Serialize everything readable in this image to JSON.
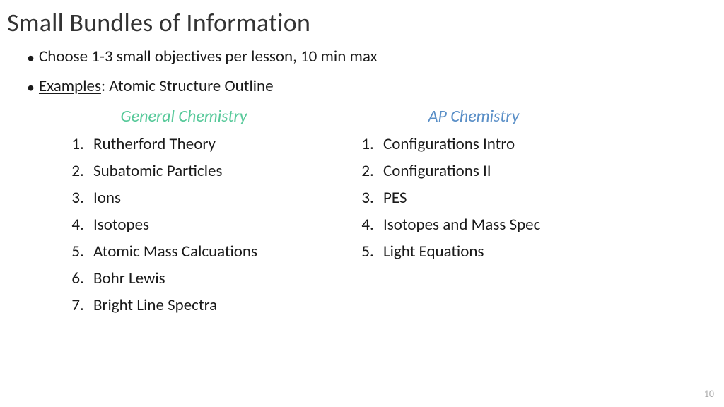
{
  "title": "Small Bundles of Information",
  "bullets": {
    "b1": "Choose 1-3 small objectives per lesson, 10 min max",
    "b2_label": "Examples",
    "b2_rest": ": Atomic Structure Outline"
  },
  "columns": {
    "left": {
      "header": "General Chemistry",
      "header_color": "#57c99a",
      "items": {
        "1": "Rutherford Theory",
        "2": "Subatomic Particles",
        "3": "Ions",
        "4": "Isotopes",
        "5": "Atomic Mass Calcuations",
        "6": "Bohr Lewis",
        "7": "Bright Line Spectra"
      }
    },
    "right": {
      "header": "AP Chemistry",
      "header_color": "#5a8fc7",
      "items": {
        "1": "Configurations Intro",
        "2": "Configurations II",
        "3": "PES",
        "4": "Isotopes and Mass Spec",
        "5": "Light Equations"
      }
    }
  },
  "page_number": "10",
  "style": {
    "title_fontsize": 36,
    "body_fontsize": 23,
    "list_lineheight": 38,
    "header_fontsize": 24,
    "pagenum_color": "#aaaaaa",
    "background": "#ffffff"
  }
}
